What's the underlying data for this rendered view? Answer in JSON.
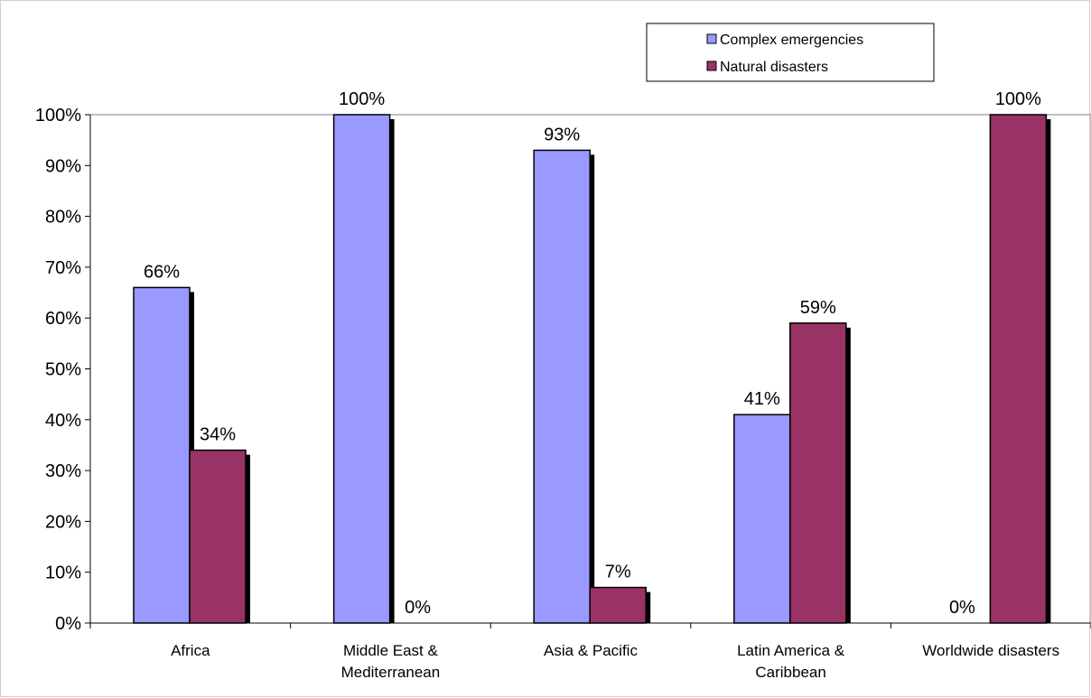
{
  "chart_data": {
    "type": "bar",
    "title": "",
    "xlabel": "",
    "ylabel": "",
    "ylim": [
      0,
      100
    ],
    "y_tick_values": [
      0,
      10,
      20,
      30,
      40,
      50,
      60,
      70,
      80,
      90,
      100
    ],
    "y_tick_labels": [
      "0%",
      "10%",
      "20%",
      "30%",
      "40%",
      "50%",
      "60%",
      "70%",
      "80%",
      "90%",
      "100%"
    ],
    "categories": [
      [
        "Africa"
      ],
      [
        "Middle East &",
        "Mediterranean"
      ],
      [
        "Asia & Pacific"
      ],
      [
        "Latin America &",
        "Caribbean"
      ],
      [
        "Worldwide disasters"
      ]
    ],
    "series": [
      {
        "name": "Complex emergencies",
        "color": "#9999ff",
        "values": [
          66,
          100,
          93,
          41,
          0
        ],
        "labels": [
          "66%",
          "100%",
          "93%",
          "41%",
          "0%"
        ]
      },
      {
        "name": "Natural disasters",
        "color": "#993366",
        "values": [
          34,
          0,
          7,
          59,
          100
        ],
        "labels": [
          "34%",
          "0%",
          "7%",
          "59%",
          "100%"
        ]
      }
    ],
    "grid": false,
    "legend_position": "top-right",
    "bar_shadow": true
  }
}
